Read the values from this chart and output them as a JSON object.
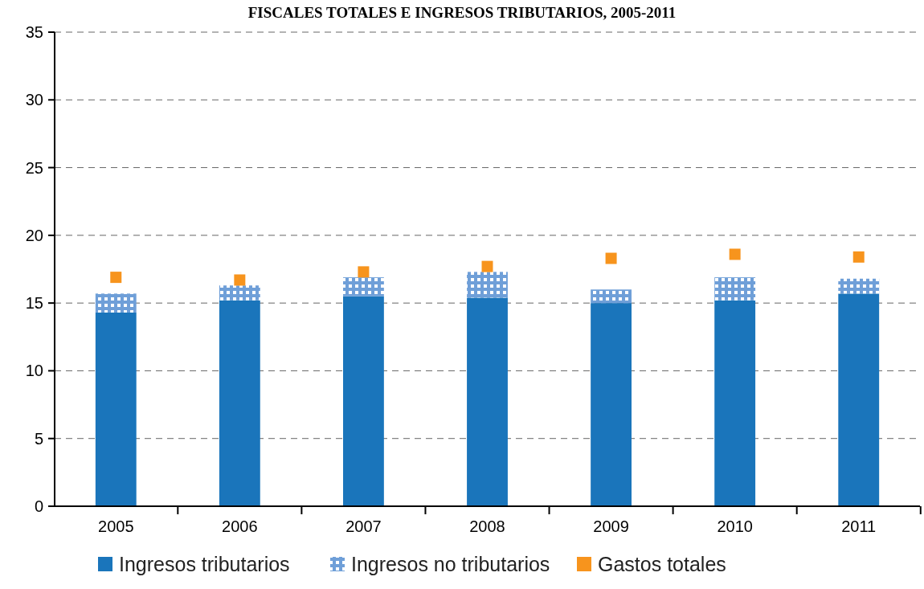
{
  "chart_data": {
    "type": "bar",
    "title": "FISCALES TOTALES E INGRESOS TRIBUTARIOS, 2005-2011",
    "categories": [
      "2005",
      "2006",
      "2007",
      "2008",
      "2009",
      "2010",
      "2011"
    ],
    "stacked": true,
    "series": [
      {
        "name": "Ingresos tributarios",
        "color": "#1a75bb",
        "values": [
          14.3,
          15.2,
          15.5,
          15.4,
          15.0,
          15.2,
          15.7
        ]
      },
      {
        "name": "Ingresos no tributarios",
        "color": "#6f9fd8",
        "values": [
          1.4,
          1.1,
          1.4,
          1.9,
          1.0,
          1.7,
          1.1
        ]
      },
      {
        "name": "Gastos totales",
        "type": "scatter",
        "marker": "square",
        "color": "#f7941d",
        "values": [
          16.9,
          16.7,
          17.3,
          17.7,
          18.3,
          18.6,
          18.4
        ]
      }
    ],
    "ylim": [
      0,
      35
    ],
    "yticks": [
      0,
      5,
      10,
      15,
      20,
      25,
      30,
      35
    ],
    "grid": "y",
    "legend": "bottom"
  }
}
